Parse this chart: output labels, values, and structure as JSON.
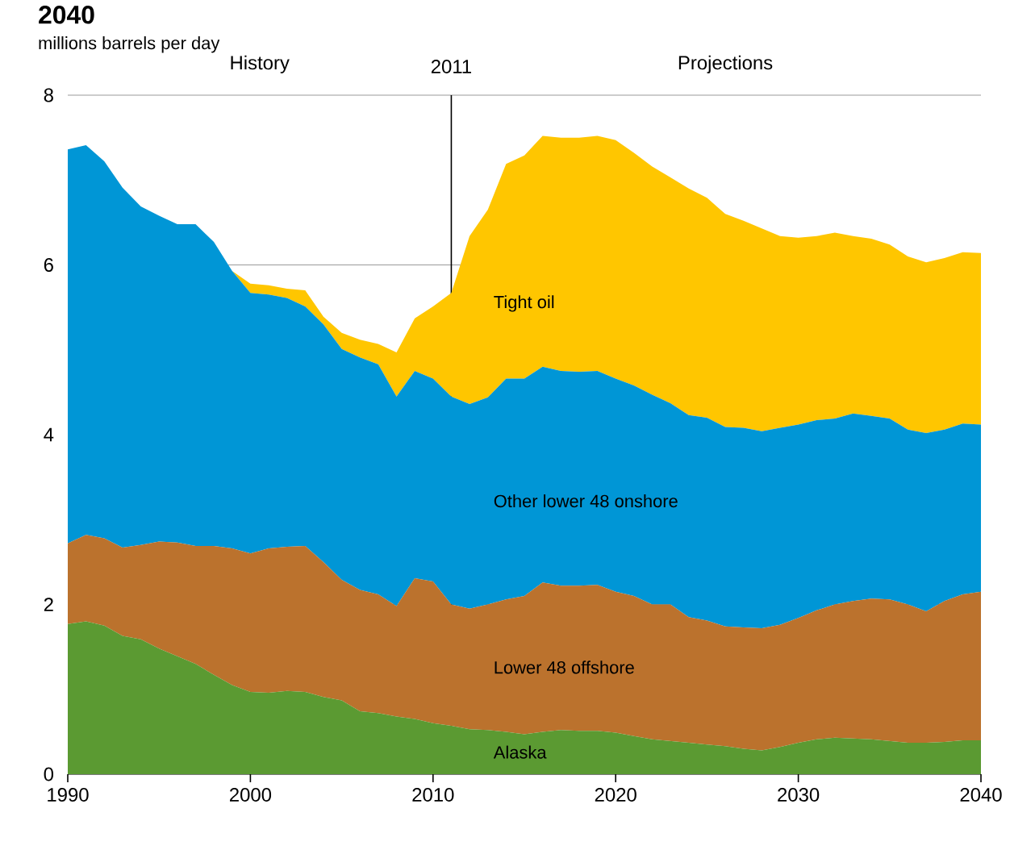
{
  "chart_data": {
    "type": "area",
    "stacked": true,
    "title": "2040",
    "ylabel": "millions barrels per day",
    "x": [
      1990,
      1991,
      1992,
      1993,
      1994,
      1995,
      1996,
      1997,
      1998,
      1999,
      2000,
      2001,
      2002,
      2003,
      2004,
      2005,
      2006,
      2007,
      2008,
      2009,
      2010,
      2011,
      2012,
      2013,
      2014,
      2015,
      2016,
      2017,
      2018,
      2019,
      2020,
      2021,
      2022,
      2023,
      2024,
      2025,
      2026,
      2027,
      2028,
      2029,
      2030,
      2031,
      2032,
      2033,
      2034,
      2035,
      2036,
      2037,
      2038,
      2039,
      2040
    ],
    "series": [
      {
        "name": "Alaska",
        "color": "#5b9a32",
        "values": [
          1.77,
          1.8,
          1.75,
          1.63,
          1.59,
          1.48,
          1.39,
          1.3,
          1.17,
          1.05,
          0.97,
          0.96,
          0.98,
          0.97,
          0.91,
          0.87,
          0.74,
          0.72,
          0.68,
          0.65,
          0.6,
          0.57,
          0.53,
          0.52,
          0.5,
          0.47,
          0.5,
          0.52,
          0.51,
          0.51,
          0.49,
          0.45,
          0.41,
          0.39,
          0.37,
          0.35,
          0.33,
          0.3,
          0.28,
          0.32,
          0.37,
          0.41,
          0.43,
          0.42,
          0.41,
          0.39,
          0.37,
          0.37,
          0.38,
          0.4,
          0.4
        ]
      },
      {
        "name": "Lower 48 offshore",
        "color": "#bb722d",
        "values": [
          0.95,
          1.02,
          1.03,
          1.04,
          1.11,
          1.26,
          1.34,
          1.39,
          1.52,
          1.61,
          1.63,
          1.7,
          1.7,
          1.72,
          1.59,
          1.42,
          1.43,
          1.4,
          1.3,
          1.66,
          1.67,
          1.43,
          1.42,
          1.48,
          1.56,
          1.63,
          1.76,
          1.7,
          1.71,
          1.72,
          1.66,
          1.65,
          1.59,
          1.61,
          1.48,
          1.46,
          1.41,
          1.43,
          1.44,
          1.44,
          1.47,
          1.52,
          1.57,
          1.62,
          1.66,
          1.67,
          1.63,
          1.55,
          1.66,
          1.72,
          1.75
        ]
      },
      {
        "name": "Other lower 48 onshore",
        "color": "#0096d6",
        "values": [
          4.64,
          4.59,
          4.44,
          4.24,
          3.99,
          3.84,
          3.75,
          3.79,
          3.58,
          3.27,
          3.07,
          2.99,
          2.93,
          2.82,
          2.8,
          2.72,
          2.74,
          2.71,
          2.47,
          2.44,
          2.39,
          2.45,
          2.41,
          2.44,
          2.6,
          2.56,
          2.54,
          2.53,
          2.52,
          2.52,
          2.51,
          2.48,
          2.47,
          2.37,
          2.38,
          2.39,
          2.35,
          2.35,
          2.32,
          2.32,
          2.28,
          2.24,
          2.19,
          2.21,
          2.15,
          2.13,
          2.06,
          2.1,
          2.02,
          2.01,
          1.97
        ]
      },
      {
        "name": "Tight oil",
        "color": "#ffc600",
        "values": [
          0,
          0,
          0,
          0,
          0,
          0,
          0,
          0,
          0,
          0,
          0.11,
          0.11,
          0.11,
          0.19,
          0.09,
          0.19,
          0.21,
          0.24,
          0.52,
          0.62,
          0.85,
          1.22,
          1.98,
          2.21,
          2.53,
          2.63,
          2.72,
          2.75,
          2.76,
          2.77,
          2.81,
          2.74,
          2.69,
          2.66,
          2.67,
          2.59,
          2.51,
          2.44,
          2.39,
          2.26,
          2.2,
          2.17,
          2.19,
          2.09,
          2.09,
          2.05,
          2.04,
          2.01,
          2.02,
          2.02,
          2.02
        ]
      }
    ],
    "xlim": [
      1990,
      2040
    ],
    "xticks": [
      1990,
      2000,
      2010,
      2020,
      2030,
      2040
    ],
    "ylim": [
      0,
      8
    ],
    "yticks": [
      0,
      2,
      4,
      6,
      8
    ],
    "grid": "y",
    "legend": false,
    "ref_lines": [
      {
        "axis": "x",
        "value": 2011,
        "label": "2011",
        "color": "#000000"
      }
    ],
    "annotations": [
      "History",
      "Projections"
    ]
  }
}
